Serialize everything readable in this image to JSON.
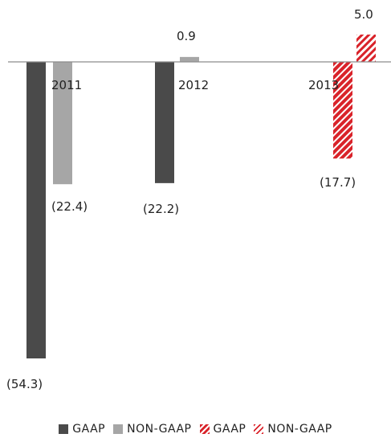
{
  "chart_data": {
    "type": "bar",
    "categories": [
      "2011",
      "2012",
      "2013"
    ],
    "series": [
      {
        "name": "GAAP",
        "values": [
          -54.3,
          -22.2,
          null
        ]
      },
      {
        "name": "NON-GAAP",
        "values": [
          -22.4,
          0.9,
          null
        ]
      },
      {
        "name": "GAAP",
        "values": [
          null,
          null,
          -17.7
        ]
      },
      {
        "name": "NON-GAAP",
        "values": [
          null,
          null,
          5.0
        ]
      }
    ],
    "data_labels": {
      "2011": [
        "(54.3)",
        "(22.4)"
      ],
      "2012": [
        "(22.2)",
        "0.9"
      ],
      "2013": [
        "(17.7)",
        "5.0"
      ]
    },
    "legend": [
      {
        "label": "GAAP",
        "style": "solid",
        "color": "#4a4a4a"
      },
      {
        "label": "NON-GAAP",
        "style": "solid",
        "color": "#a6a6a6"
      },
      {
        "label": "GAAP",
        "style": "hatched",
        "color": "#d9232a"
      },
      {
        "label": "NON-GAAP",
        "style": "hatched-light",
        "color": "#d9232a"
      }
    ],
    "legend_position": "bottom",
    "grid": false,
    "title": "",
    "xlabel": "",
    "ylabel": "",
    "ylim": [
      -54.3,
      5.0
    ],
    "colors": {
      "gaap_dark": "#4a4a4a",
      "nongaap_light": "#a6a6a6",
      "highlight_red": "#d9232a",
      "axis": "#8c8c8c"
    }
  }
}
